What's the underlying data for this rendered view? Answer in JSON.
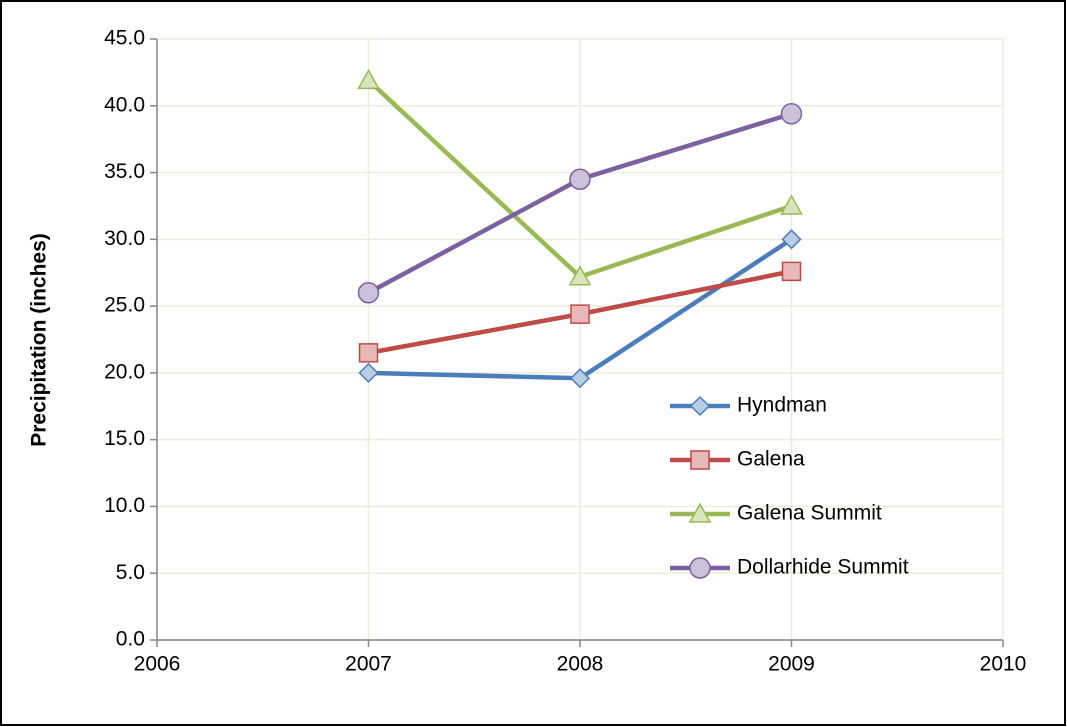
{
  "chart_data": {
    "type": "line",
    "y_label": "Precipitation (inches)",
    "x": [
      2007,
      2008,
      2009
    ],
    "xlim": [
      2006,
      2010
    ],
    "xticks": [
      2006,
      2007,
      2008,
      2009,
      2010
    ],
    "ylim": [
      0,
      45
    ],
    "yticks": [
      {
        "value": 0,
        "label": "0.0"
      },
      {
        "value": 5,
        "label": "5.0"
      },
      {
        "value": 10,
        "label": "10.0"
      },
      {
        "value": 15,
        "label": "15.0"
      },
      {
        "value": 20,
        "label": "20.0"
      },
      {
        "value": 25,
        "label": "25.0"
      },
      {
        "value": 30,
        "label": "30.0"
      },
      {
        "value": 35,
        "label": "35.0"
      },
      {
        "value": 40,
        "label": "40.0"
      },
      {
        "value": 45,
        "label": "45.0"
      }
    ],
    "grid": true,
    "legend": "right",
    "series": [
      {
        "name": "Hyndman",
        "color": "#4a7ebb",
        "marker_fill": "#b9cde5",
        "marker": "diamond",
        "values": [
          20.0,
          19.6,
          30.0
        ]
      },
      {
        "name": "Galena",
        "color": "#be4b48",
        "marker_fill": "#e6b9b8",
        "marker": "square",
        "values": [
          21.5,
          24.4,
          27.6
        ]
      },
      {
        "name": "Galena Summit",
        "color": "#98b954",
        "marker_fill": "#d7e4bd",
        "marker": "triangle",
        "values": [
          41.9,
          27.2,
          32.5
        ]
      },
      {
        "name": "Dollarhide Summit",
        "color": "#7d60a0",
        "marker_fill": "#ccc1da",
        "marker": "circle",
        "values": [
          26.0,
          34.5,
          39.4
        ]
      }
    ]
  }
}
